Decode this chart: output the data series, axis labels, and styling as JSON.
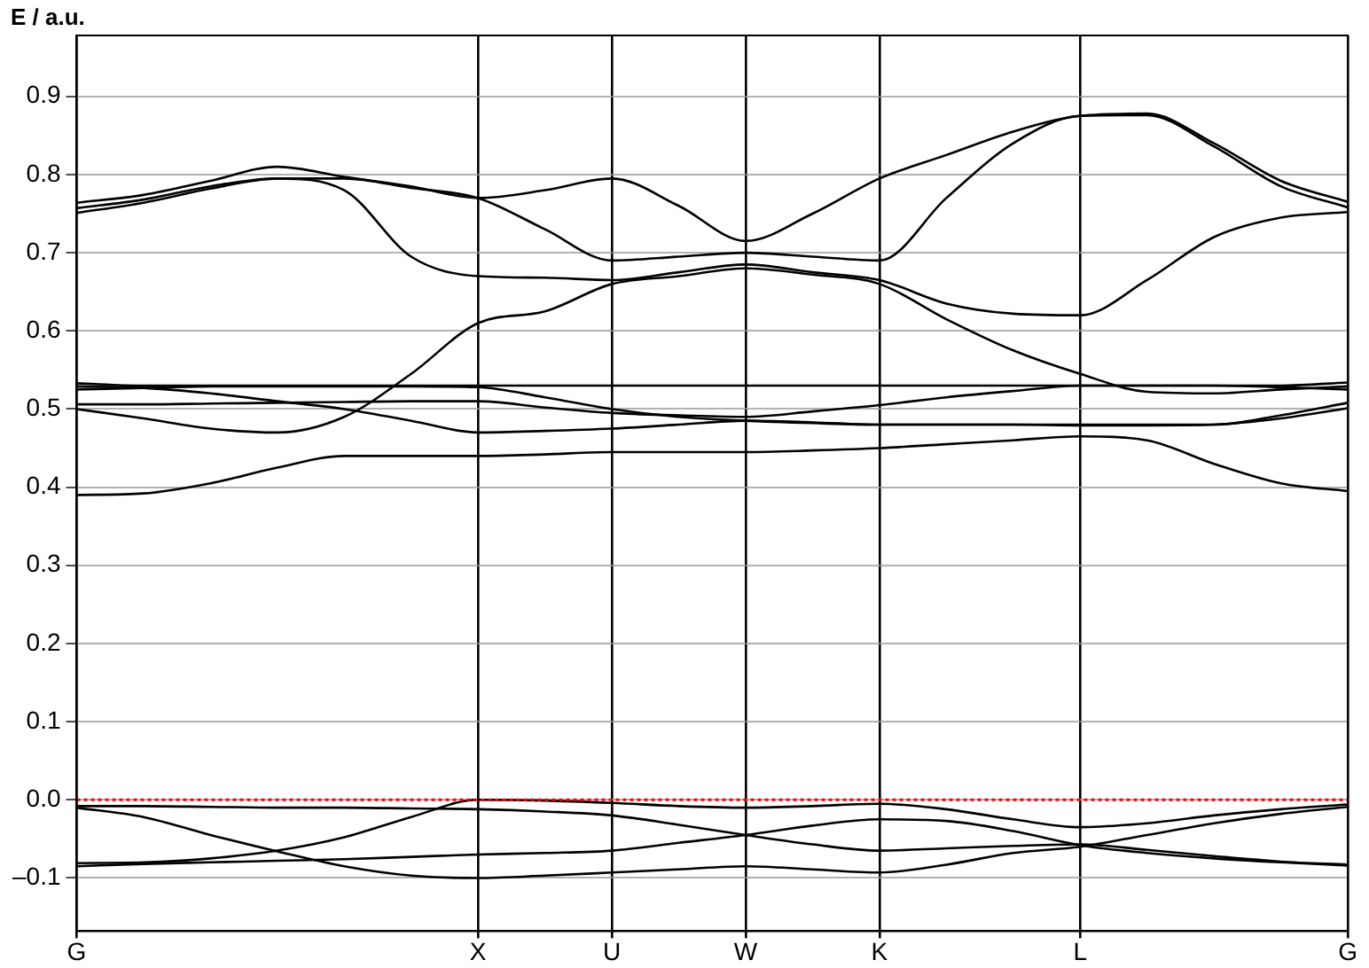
{
  "chart_data": {
    "type": "line",
    "ylabel": "E / a.u.",
    "categories": [
      "G",
      null,
      null,
      null,
      null,
      null,
      "X",
      null,
      "U",
      null,
      "W",
      null,
      "K",
      null,
      null,
      "L",
      null,
      null,
      null,
      "G"
    ],
    "ylim": [
      -0.168,
      0.978
    ],
    "yticks": [
      {
        "value": -0.1,
        "label": "–0.1"
      },
      {
        "value": 0,
        "label": "0.0"
      },
      0.1,
      0.2,
      0.3,
      0.4,
      0.5,
      0.6,
      0.7,
      0.8,
      0.9
    ],
    "grid": true,
    "legend": false,
    "ref_lines": [
      {
        "axis": "y",
        "value": 0,
        "label": null,
        "color": "#ff0000",
        "line_style": "dotted"
      }
    ],
    "series": [
      {
        "color": "#000000",
        "values": [
          0.764,
          0.774,
          0.792,
          0.81,
          0.797,
          0.785,
          0.77,
          0.78,
          0.795,
          0.76,
          0.715,
          0.75,
          0.795,
          0.825,
          0.855,
          0.875,
          0.878,
          0.84,
          0.792,
          0.765
        ]
      },
      {
        "color": "#000000",
        "values": [
          0.757,
          0.768,
          0.785,
          0.795,
          0.795,
          0.783,
          0.77,
          0.73,
          0.69,
          0.695,
          0.7,
          0.695,
          0.69,
          0.77,
          0.84,
          0.875,
          0.876,
          0.836,
          0.785,
          0.758
        ]
      },
      {
        "color": "#000000",
        "values": [
          0.751,
          0.764,
          0.782,
          0.795,
          0.78,
          0.695,
          0.67,
          0.668,
          0.665,
          0.675,
          0.685,
          0.675,
          0.665,
          0.635,
          0.622,
          0.62,
          0.665,
          0.72,
          0.745,
          0.752
        ]
      },
      {
        "color": "#000000",
        "values": [
          0.5,
          0.488,
          0.475,
          0.47,
          0.49,
          0.545,
          0.61,
          0.625,
          0.66,
          0.67,
          0.68,
          0.672,
          0.66,
          0.615,
          0.575,
          0.545,
          0.522,
          0.52,
          0.525,
          0.529
        ]
      },
      {
        "color": "#000000",
        "values": [
          0.533,
          0.53,
          0.53,
          0.53,
          0.53,
          0.53,
          0.53,
          0.53,
          0.53,
          0.53,
          0.53,
          0.53,
          0.53,
          0.53,
          0.53,
          0.53,
          0.53,
          0.53,
          0.53,
          0.534
        ]
      },
      {
        "color": "#000000",
        "values": [
          0.529,
          0.527,
          0.52,
          0.51,
          0.5,
          0.485,
          0.47,
          0.472,
          0.475,
          0.48,
          0.485,
          0.483,
          0.48,
          0.48,
          0.48,
          0.48,
          0.48,
          0.48,
          0.492,
          0.508
        ]
      },
      {
        "color": "#000000",
        "values": [
          0.506,
          0.506,
          0.507,
          0.508,
          0.509,
          0.51,
          0.51,
          0.502,
          0.495,
          0.492,
          0.49,
          0.497,
          0.505,
          0.515,
          0.523,
          0.53,
          0.53,
          0.53,
          0.528,
          0.525
        ]
      },
      {
        "color": "#000000",
        "values": [
          0.525,
          0.527,
          0.529,
          0.529,
          0.529,
          0.529,
          0.528,
          0.515,
          0.5,
          0.49,
          0.485,
          0.482,
          0.48,
          0.48,
          0.48,
          0.479,
          0.479,
          0.48,
          0.488,
          0.501
        ]
      },
      {
        "color": "#000000",
        "values": [
          0.39,
          0.392,
          0.405,
          0.425,
          0.44,
          0.44,
          0.44,
          0.442,
          0.445,
          0.445,
          0.445,
          0.447,
          0.45,
          0.455,
          0.46,
          0.465,
          0.46,
          0.43,
          0.405,
          0.395
        ]
      },
      {
        "color": "#000000",
        "values": [
          -0.008,
          -0.008,
          -0.009,
          -0.01,
          -0.01,
          -0.011,
          -0.012,
          -0.015,
          -0.02,
          -0.032,
          -0.045,
          -0.057,
          -0.065,
          -0.062,
          -0.059,
          -0.057,
          -0.064,
          -0.072,
          -0.079,
          -0.083
        ]
      },
      {
        "color": "#000000",
        "values": [
          -0.081,
          -0.08,
          -0.075,
          -0.065,
          -0.048,
          -0.022,
          0.0,
          -0.001,
          -0.004,
          -0.008,
          -0.01,
          -0.008,
          -0.005,
          -0.012,
          -0.025,
          -0.035,
          -0.03,
          -0.02,
          -0.012,
          -0.006
        ]
      },
      {
        "color": "#000000",
        "values": [
          -0.01,
          -0.022,
          -0.045,
          -0.066,
          -0.085,
          -0.097,
          -0.1,
          -0.097,
          -0.093,
          -0.089,
          -0.085,
          -0.089,
          -0.093,
          -0.083,
          -0.068,
          -0.06,
          -0.045,
          -0.03,
          -0.018,
          -0.009
        ]
      },
      {
        "color": "#000000",
        "values": [
          -0.085,
          -0.082,
          -0.08,
          -0.078,
          -0.076,
          -0.073,
          -0.07,
          -0.068,
          -0.065,
          -0.055,
          -0.045,
          -0.033,
          -0.025,
          -0.027,
          -0.04,
          -0.058,
          -0.068,
          -0.075,
          -0.08,
          -0.084
        ]
      }
    ]
  }
}
